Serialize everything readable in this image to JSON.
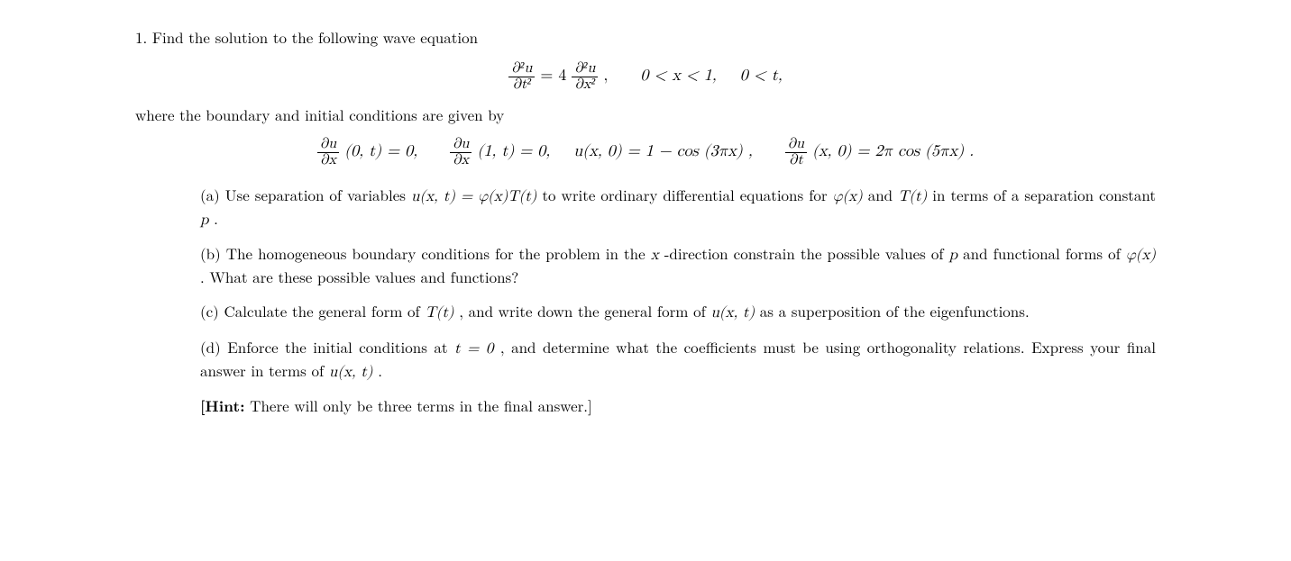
{
  "problem_number": "1.",
  "intro_text": "Find the solution to the following wave equation",
  "main_equation": {
    "lhs_num": "∂²u",
    "lhs_den": "∂t²",
    "eq": "=",
    "coeff": "4",
    "rhs_num": "∂²u",
    "rhs_den": "∂x²",
    "comma": ",",
    "domain_x": "0 < x < 1,",
    "domain_t": "0 < t,"
  },
  "boundary_intro": "where the boundary and initial conditions are given by",
  "boundary_conditions": {
    "bc1_frac_num": "∂u",
    "bc1_frac_den": "∂x",
    "bc1_arg": "(0, t) = 0,",
    "bc2_frac_num": "∂u",
    "bc2_frac_den": "∂x",
    "bc2_arg": "(1, t) = 0,",
    "ic1": "u(x, 0) = 1 − cos (3πx) ,",
    "ic2_frac_num": "∂u",
    "ic2_frac_den": "∂t",
    "ic2_arg": "(x, 0) = 2π cos (5πx) ."
  },
  "parts": {
    "a": {
      "label": "(a)",
      "text_before": "Use separation of variables ",
      "eq": "u(x, t) = φ(x)T(t)",
      "text_mid": " to write ordinary differential equations for ",
      "phi": "φ(x)",
      "text_and": " and ",
      "T": "T(t)",
      "text_after": " in terms of a separation constant ",
      "p": "p",
      "dot": "."
    },
    "b": {
      "label": "(b)",
      "text_before": "The homogeneous boundary conditions for the problem in the ",
      "x": "x",
      "text_mid": "-direction constrain the possible values of ",
      "p": "p",
      "text_mid2": " and functional forms of ",
      "phi": "φ(x)",
      "text_after": ". What are these possible values and functions?"
    },
    "c": {
      "label": "(c)",
      "text_before": "Calculate the general form of ",
      "T": "T(t)",
      "text_mid": ", and write down the general form of ",
      "u": "u(x, t)",
      "text_after": " as a superposition of the eigenfunctions."
    },
    "d": {
      "label": "(d)",
      "text_before": "Enforce the initial conditions at ",
      "t0": "t = 0",
      "text_mid": ", and determine what the coefficients must be using orthogonality relations. Express your final answer in terms of ",
      "u": "u(x, t)",
      "dot": "."
    }
  },
  "hint": {
    "label": "[Hint:",
    "text": " There will only be three terms in the final answer.]"
  },
  "colors": {
    "text": "#000000",
    "background": "#ffffff"
  },
  "typography": {
    "body_fontsize": 17,
    "math_fontsize": 18,
    "font_family": "Latin Modern Roman / Computer Modern"
  }
}
